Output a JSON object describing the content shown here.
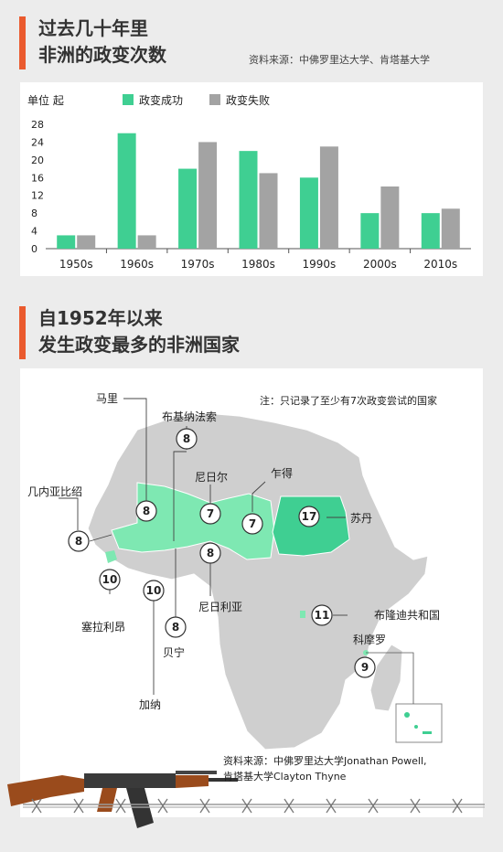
{
  "title1": {
    "line1": "过去几十年里",
    "line2": "非洲的政变次数"
  },
  "source1": "资料来源：中佛罗里达大学、肯塔基大学",
  "title2": {
    "line1": "自1952年以来",
    "line2": "发生政变最多的非洲国家"
  },
  "note": "注：只记录了至少有7次政变尝试的国家",
  "source2": {
    "line1": "资料来源：中佛罗里达大学Jonathan Powell,",
    "line2": "肯塔基大学Clayton Thyne"
  },
  "colors": {
    "success": "#3fcf92",
    "fail": "#a3a3a3",
    "accent": "#ea5a2e",
    "map_land": "#cfcfcf",
    "map_highlight": "#7ee8b2",
    "sudan": "#3fcf92"
  },
  "chart_data": {
    "type": "bar",
    "unit_label": "单位 起",
    "categories": [
      "1950s",
      "1960s",
      "1970s",
      "1980s",
      "1990s",
      "2000s",
      "2010s"
    ],
    "series": [
      {
        "name": "政变成功",
        "color": "#3fcf92",
        "values": [
          3,
          26,
          18,
          22,
          16,
          8,
          8
        ]
      },
      {
        "name": "政变失败",
        "color": "#a3a3a3",
        "values": [
          3,
          3,
          24,
          17,
          23,
          14,
          9
        ]
      }
    ],
    "yticks": [
      0,
      4,
      8,
      12,
      16,
      20,
      24,
      28
    ],
    "ylim": [
      0,
      28
    ],
    "grid": false,
    "legend": "top"
  },
  "map_data": {
    "countries": [
      {
        "name": "马里",
        "count": 8
      },
      {
        "name": "布基纳法索",
        "count": 8
      },
      {
        "name": "尼日尔",
        "count": 7
      },
      {
        "name": "乍得",
        "count": 7
      },
      {
        "name": "苏丹",
        "count": 17
      },
      {
        "name": "几内亚比绍",
        "count": 8
      },
      {
        "name": "塞拉利昂",
        "count": 10
      },
      {
        "name": "加纳",
        "count": 10
      },
      {
        "name": "贝宁",
        "count": 8
      },
      {
        "name": "尼日利亚",
        "count": 8
      },
      {
        "name": "布隆迪共和国",
        "count": 11
      },
      {
        "name": "科摩罗",
        "count": 9
      }
    ]
  }
}
